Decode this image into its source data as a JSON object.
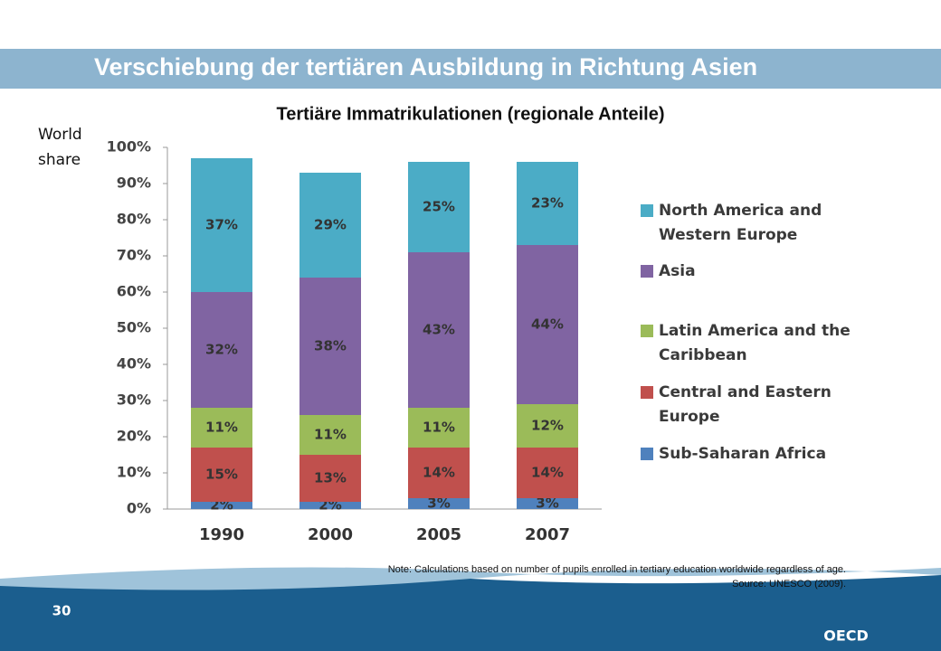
{
  "slide": {
    "title": "Verschiebung der tertiären Ausbildung in Richtung Asien",
    "note": "Note: Calculations based on number of pupils enrolled in tertiary education worldwide regardless of age.",
    "source": "Source: UNESCO (2009).",
    "page": "30",
    "logo": "OECD"
  },
  "chart_data": {
    "type": "stacked_bar",
    "title": "Tertiäre Immatrikulationen (regionale Anteile)",
    "y_label": [
      "World",
      "share"
    ],
    "categories": [
      "1990",
      "2000",
      "2005",
      "2007"
    ],
    "series": [
      {
        "name": "Sub-Saharan Africa",
        "color": "#4f81bd",
        "values": [
          2,
          2,
          3,
          3
        ],
        "value_labels": [
          "2%",
          "2%",
          "3%",
          "3%"
        ]
      },
      {
        "name": "Central and Eastern Europe",
        "color": "#c0504d",
        "values": [
          15,
          13,
          14,
          14
        ],
        "value_labels": [
          "15%",
          "13%",
          "14%",
          "14%"
        ]
      },
      {
        "name": "Latin America and the Caribbean",
        "color": "#9bbb59",
        "values": [
          11,
          11,
          11,
          12
        ],
        "value_labels": [
          "11%",
          "11%",
          "11%",
          "12%"
        ]
      },
      {
        "name": "Asia",
        "color": "#8064a2",
        "values": [
          32,
          38,
          43,
          44
        ],
        "value_labels": [
          "32%",
          "38%",
          "43%",
          "44%"
        ]
      },
      {
        "name": "North America and Western Europe",
        "color": "#4bacc6",
        "values": [
          37,
          29,
          25,
          23
        ],
        "value_labels": [
          "37%",
          "29%",
          "25%",
          "23%"
        ]
      }
    ],
    "ylim": [
      0,
      100
    ],
    "yticks": [
      {
        "value": 0,
        "label": "0%"
      },
      {
        "value": 10,
        "label": "10%"
      },
      {
        "value": 20,
        "label": "20%"
      },
      {
        "value": 30,
        "label": "30%"
      },
      {
        "value": 40,
        "label": "40%"
      },
      {
        "value": 50,
        "label": "50%"
      },
      {
        "value": 60,
        "label": "60%"
      },
      {
        "value": 70,
        "label": "70%"
      },
      {
        "value": 80,
        "label": "80%"
      },
      {
        "value": 90,
        "label": "90%"
      },
      {
        "value": 100,
        "label": "100%"
      }
    ],
    "legend": "right"
  }
}
